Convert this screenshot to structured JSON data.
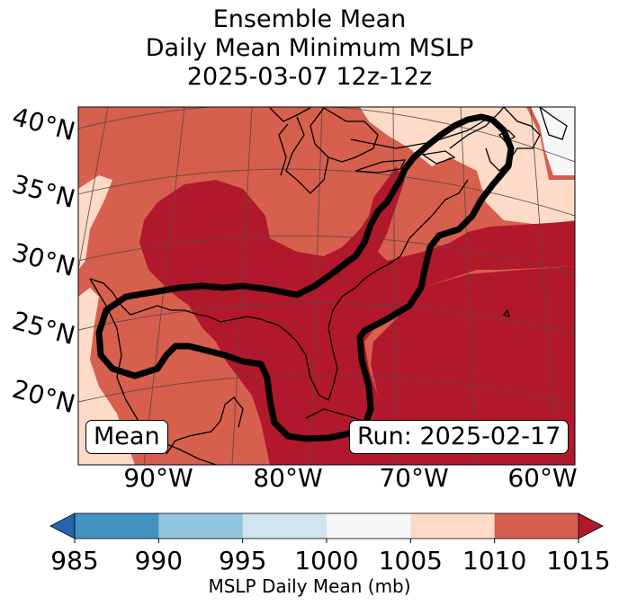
{
  "title": {
    "line1": "Ensemble Mean",
    "line2": "Daily Mean Minimum MSLP",
    "line3": "2025-03-07 12z-12z"
  },
  "map": {
    "lat_labels": [
      "40°N",
      "35°N",
      "30°N",
      "25°N",
      "20°N"
    ],
    "lon_labels": [
      "90°W",
      "80°W",
      "70°W",
      "60°W"
    ],
    "mean_label": "Mean",
    "run_label": "Run: 2025-02-17",
    "field_classes": {
      "c1005_1010": "#fddbc7",
      "c1010_1015": "#d6604d",
      "c1015_plus": "#b2182b",
      "c1000_1005": "#f7f7f7"
    },
    "contour_color": "#000000"
  },
  "colorbar": {
    "title": "MSLP Daily Mean (mb)",
    "ticks": [
      "985",
      "990",
      "995",
      "1000",
      "1005",
      "1010",
      "1015"
    ],
    "colors": [
      "#2166ac",
      "#4393c3",
      "#92c5de",
      "#d1e5f0",
      "#f7f7f7",
      "#fddbc7",
      "#d6604d",
      "#b2182b"
    ]
  }
}
